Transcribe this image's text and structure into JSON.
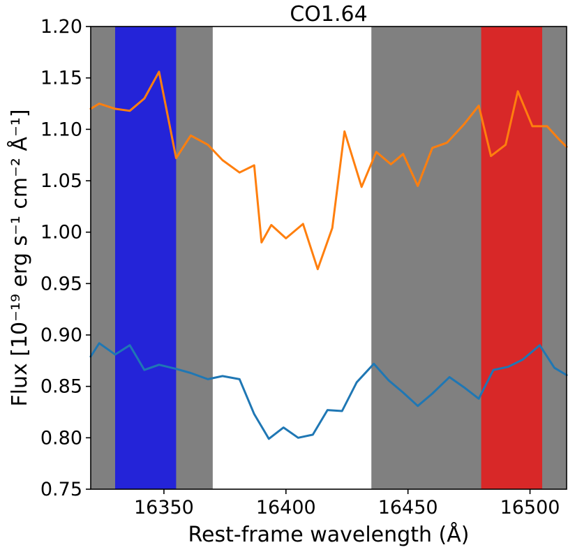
{
  "chart_data": {
    "type": "line",
    "title": "CO1.64",
    "xlabel": "Rest-frame wavelength (Å)",
    "ylabel": "Flux [10⁻¹⁹ erg s⁻¹ cm⁻² Å⁻¹]",
    "xlim": [
      16320,
      16515
    ],
    "ylim": [
      0.75,
      1.2
    ],
    "xticks": [
      16350,
      16400,
      16450,
      16500
    ],
    "yticks": [
      0.75,
      0.8,
      0.85,
      0.9,
      0.95,
      1.0,
      1.05,
      1.1,
      1.15,
      1.2
    ],
    "xtick_labels": [
      "16350",
      "16400",
      "16450",
      "16500"
    ],
    "ytick_labels": [
      "0.75",
      "0.80",
      "0.85",
      "0.90",
      "0.95",
      "1.00",
      "1.05",
      "1.10",
      "1.15",
      "1.20"
    ],
    "grid": false,
    "legend": "none",
    "bands": [
      {
        "x0": 16320,
        "x1": 16370,
        "color": "#808080"
      },
      {
        "x0": 16435,
        "x1": 16515,
        "color": "#808080"
      },
      {
        "x0": 16330,
        "x1": 16355,
        "color": "#2424d8"
      },
      {
        "x0": 16480,
        "x1": 16505,
        "color": "#d82828"
      }
    ],
    "series": [
      {
        "color": "#ff7f0e",
        "x": [
          16320,
          16323.5,
          16330,
          16336,
          16342,
          16348,
          16355,
          16361,
          16368,
          16374,
          16381,
          16387,
          16390,
          16394,
          16400,
          16407,
          16413,
          16419,
          16424,
          16431,
          16437,
          16443,
          16448,
          16454,
          16460,
          16466,
          16473,
          16479,
          16484,
          16490,
          16495,
          16501,
          16507,
          16512,
          16515
        ],
        "y": [
          1.12,
          1.125,
          1.12,
          1.118,
          1.13,
          1.156,
          1.072,
          1.094,
          1.085,
          1.07,
          1.058,
          1.065,
          0.99,
          1.007,
          0.994,
          1.008,
          0.964,
          1.004,
          1.098,
          1.044,
          1.078,
          1.066,
          1.076,
          1.045,
          1.082,
          1.087,
          1.105,
          1.123,
          1.074,
          1.085,
          1.137,
          1.103,
          1.103,
          1.09,
          1.083
        ]
      },
      {
        "color": "#1f77b4",
        "x": [
          16320,
          16323.5,
          16330,
          16336,
          16342,
          16348,
          16355,
          16361,
          16368,
          16374,
          16381,
          16387,
          16393,
          16399,
          16405,
          16411,
          16417,
          16423,
          16429,
          16436,
          16442,
          16448,
          16454,
          16460,
          16467,
          16473,
          16479,
          16485,
          16491,
          16497,
          16504,
          16510,
          16515
        ],
        "y": [
          0.879,
          0.892,
          0.881,
          0.89,
          0.866,
          0.871,
          0.867,
          0.863,
          0.857,
          0.86,
          0.857,
          0.823,
          0.799,
          0.81,
          0.8,
          0.803,
          0.827,
          0.826,
          0.854,
          0.872,
          0.856,
          0.844,
          0.831,
          0.843,
          0.859,
          0.849,
          0.838,
          0.866,
          0.869,
          0.876,
          0.89,
          0.868,
          0.861
        ]
      }
    ]
  }
}
